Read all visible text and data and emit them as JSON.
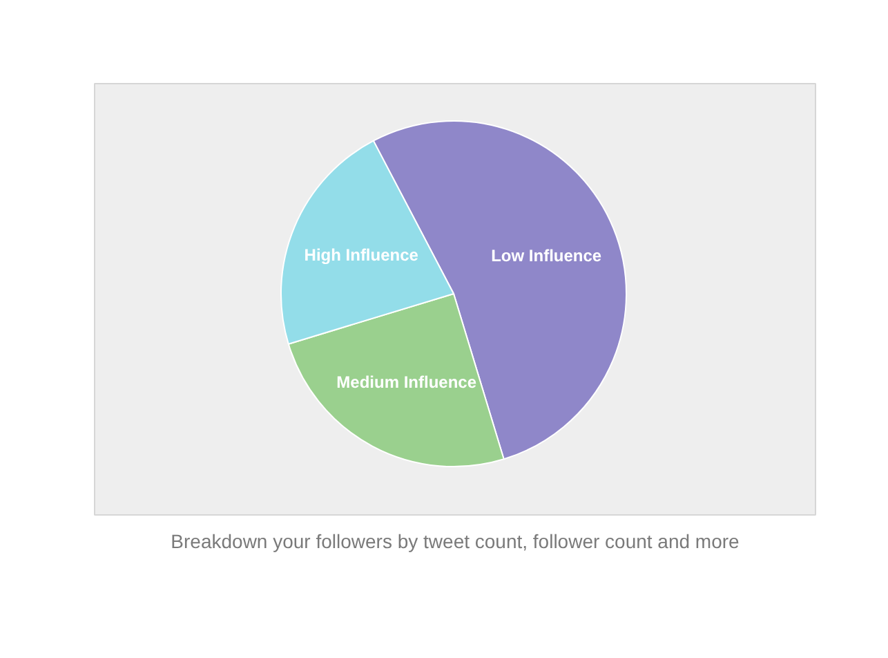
{
  "chart_data": {
    "type": "pie",
    "categories": [
      "Low Influence",
      "Medium Influence",
      "High Influence"
    ],
    "values": [
      53,
      25,
      22
    ],
    "colors": [
      "#8f87c9",
      "#9ad08e",
      "#93dde9"
    ],
    "annotations": [
      "Breakdown your followers by tweet count, follower count and more"
    ]
  }
}
